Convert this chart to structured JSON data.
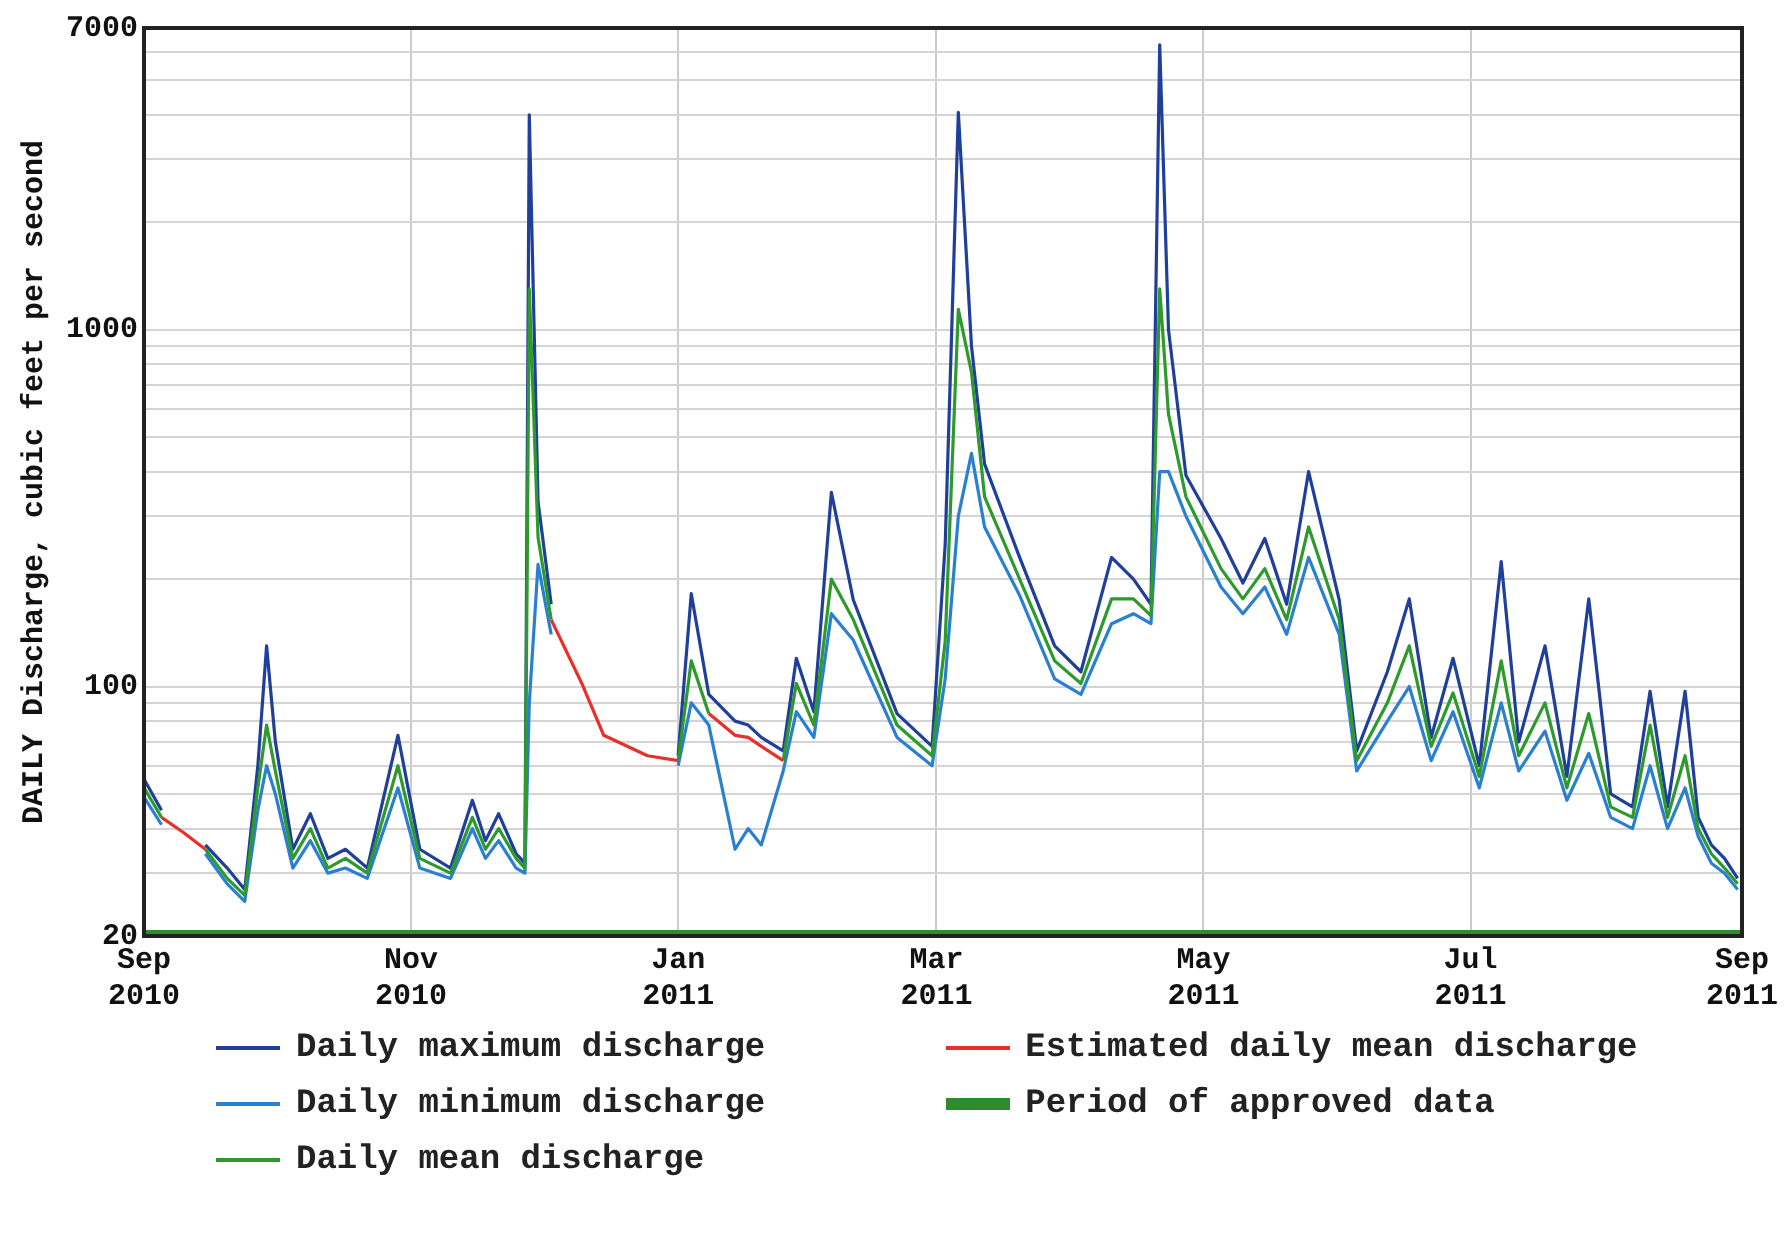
{
  "chart_data": {
    "type": "line",
    "ylabel": "DAILY Discharge, cubic feet per second",
    "log": "y",
    "grid": true,
    "legend": "bottom",
    "ylim": [
      20,
      7000
    ],
    "yticks": [
      20,
      {
        "value": 30,
        "label": null
      },
      {
        "value": 40,
        "label": null
      },
      {
        "value": 50,
        "label": null
      },
      {
        "value": 60,
        "label": null
      },
      {
        "value": 70,
        "label": null
      },
      {
        "value": 80,
        "label": null
      },
      {
        "value": 90,
        "label": null
      },
      100,
      {
        "value": 200,
        "label": null
      },
      {
        "value": 300,
        "label": null
      },
      {
        "value": 400,
        "label": null
      },
      {
        "value": 500,
        "label": null
      },
      {
        "value": 600,
        "label": null
      },
      {
        "value": 700,
        "label": null
      },
      {
        "value": 800,
        "label": null
      },
      {
        "value": 900,
        "label": null
      },
      1000,
      {
        "value": 2000,
        "label": null
      },
      {
        "value": 3000,
        "label": null
      },
      {
        "value": 4000,
        "label": null
      },
      {
        "value": 5000,
        "label": null
      },
      {
        "value": 6000,
        "label": null
      },
      7000
    ],
    "xlim": [
      "2010-09-01",
      "2011-09-01"
    ],
    "xticks": [
      {
        "value": "2010-09-01",
        "label": "Sep\n2010"
      },
      {
        "value": "2010-11-01",
        "label": "Nov\n2010"
      },
      {
        "value": "2011-01-01",
        "label": "Jan\n2011"
      },
      {
        "value": "2011-03-01",
        "label": "Mar\n2011"
      },
      {
        "value": "2011-05-01",
        "label": "May\n2011"
      },
      {
        "value": "2011-07-01",
        "label": "Jul\n2011"
      },
      {
        "value": "2011-09-01",
        "label": "Sep\n2011"
      }
    ],
    "x": [
      "2010-09-01",
      "2010-09-05",
      "2010-09-10",
      "2010-09-15",
      "2010-09-20",
      "2010-09-24",
      "2010-09-27",
      "2010-09-29",
      "2010-10-01",
      "2010-10-05",
      "2010-10-09",
      "2010-10-13",
      "2010-10-17",
      "2010-10-22",
      "2010-10-29",
      "2010-11-03",
      "2010-11-10",
      "2010-11-15",
      "2010-11-18",
      "2010-11-21",
      "2010-11-25",
      "2010-11-27",
      "2010-11-28",
      "2010-11-30",
      "2010-12-03",
      "2010-12-10",
      "2010-12-15",
      "2010-12-25",
      "2011-01-01",
      "2011-01-04",
      "2011-01-08",
      "2011-01-14",
      "2011-01-17",
      "2011-01-20",
      "2011-01-25",
      "2011-01-28",
      "2011-02-01",
      "2011-02-05",
      "2011-02-10",
      "2011-02-20",
      "2011-02-28",
      "2011-03-03",
      "2011-03-06",
      "2011-03-09",
      "2011-03-12",
      "2011-03-20",
      "2011-03-28",
      "2011-04-03",
      "2011-04-10",
      "2011-04-15",
      "2011-04-19",
      "2011-04-21",
      "2011-04-23",
      "2011-04-27",
      "2011-05-05",
      "2011-05-10",
      "2011-05-15",
      "2011-05-20",
      "2011-05-25",
      "2011-06-01",
      "2011-06-05",
      "2011-06-12",
      "2011-06-17",
      "2011-06-22",
      "2011-06-27",
      "2011-07-03",
      "2011-07-08",
      "2011-07-12",
      "2011-07-18",
      "2011-07-23",
      "2011-07-28",
      "2011-08-02",
      "2011-08-07",
      "2011-08-11",
      "2011-08-15",
      "2011-08-19",
      "2011-08-22",
      "2011-08-25",
      "2011-08-28",
      "2011-08-31"
    ],
    "series": [
      {
        "name": "Daily maximum discharge",
        "color": "#1f3f9a",
        "values": [
          55,
          45,
          null,
          36,
          31,
          27,
          60,
          130,
          70,
          35,
          44,
          33,
          35,
          31,
          73,
          35,
          31,
          48,
          37,
          44,
          34,
          32,
          4000,
          330,
          170,
          null,
          null,
          null,
          64,
          182,
          95,
          80,
          78,
          72,
          66,
          120,
          85,
          350,
          175,
          84,
          68,
          250,
          4060,
          900,
          420,
          230,
          130,
          110,
          230,
          200,
          170,
          6280,
          1000,
          390,
          260,
          195,
          260,
          170,
          400,
          175,
          66,
          110,
          176,
          72,
          120,
          60,
          224,
          70,
          130,
          56,
          176,
          50,
          46,
          97,
          46,
          97,
          43,
          36,
          33,
          29
        ]
      },
      {
        "name": "Daily minimum discharge",
        "color": "#2a80d0",
        "values": [
          49,
          41,
          null,
          34,
          28,
          25,
          45,
          60,
          50,
          31,
          37,
          30,
          31,
          29,
          52,
          31,
          29,
          40,
          33,
          37,
          31,
          30,
          90,
          220,
          140,
          null,
          null,
          null,
          60,
          90,
          78,
          35,
          40,
          36,
          58,
          85,
          72,
          160,
          135,
          72,
          60,
          105,
          300,
          450,
          280,
          180,
          105,
          95,
          150,
          160,
          150,
          400,
          400,
          300,
          190,
          160,
          190,
          140,
          230,
          140,
          58,
          80,
          100,
          62,
          85,
          52,
          90,
          58,
          75,
          48,
          65,
          43,
          40,
          60,
          40,
          52,
          38,
          32,
          30,
          27
        ]
      },
      {
        "name": "Daily mean discharge",
        "color": "#2e9a2e",
        "values": [
          52,
          43,
          null,
          35,
          29,
          26,
          52,
          78,
          58,
          33,
          40,
          31,
          33,
          30,
          60,
          33,
          30,
          43,
          35,
          40,
          33,
          31,
          1300,
          262,
          154,
          null,
          null,
          null,
          62,
          118,
          84,
          null,
          null,
          null,
          62,
          102,
          78,
          200,
          154,
          78,
          64,
          134,
          1140,
          760,
          340,
          200,
          118,
          102,
          176,
          176,
          158,
          1300,
          580,
          340,
          214,
          176,
          214,
          154,
          280,
          154,
          62,
          90,
          130,
          68,
          96,
          56,
          118,
          64,
          90,
          52,
          84,
          46,
          43,
          78,
          43,
          64,
          40,
          34,
          31,
          28
        ]
      },
      {
        "name": "Estimated daily mean discharge",
        "color": "#e8302a",
        "values": [
          null,
          43,
          39,
          35,
          null,
          null,
          null,
          null,
          null,
          null,
          null,
          null,
          null,
          null,
          null,
          null,
          null,
          null,
          null,
          null,
          null,
          null,
          null,
          null,
          154,
          102,
          73,
          64,
          62,
          null,
          84,
          73,
          72,
          68,
          62,
          null,
          null,
          null,
          null,
          null,
          null,
          null,
          null,
          null,
          null,
          null,
          null,
          null,
          null,
          null,
          null,
          null,
          null,
          null,
          null,
          null,
          null,
          null,
          null,
          null,
          null,
          null,
          null,
          null,
          null,
          null,
          null,
          null,
          null,
          null,
          null,
          null,
          null,
          null,
          null,
          null,
          null,
          null,
          null,
          null
        ]
      },
      {
        "name": "Period of approved data",
        "color": "#2e8b2e",
        "x": [
          "2010-09-01",
          "2011-09-01"
        ],
        "values": [
          20,
          20
        ]
      }
    ]
  }
}
